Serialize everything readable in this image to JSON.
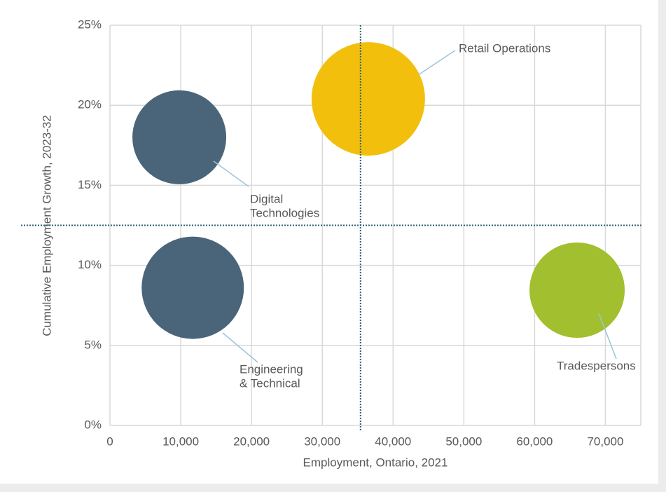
{
  "chart_data": {
    "type": "bubble",
    "x_label": "Employment, Ontario, 2021",
    "y_label": "Cumulative Employment Growth, 2023-32",
    "xlim": [
      0,
      75000
    ],
    "ylim": [
      0,
      25
    ],
    "xticks": [
      0,
      {
        "value": 10000,
        "label": "10,000"
      },
      {
        "value": 20000,
        "label": "20,000"
      },
      {
        "value": 30000,
        "label": "30,000"
      },
      {
        "value": 40000,
        "label": "40,000"
      },
      {
        "value": 50000,
        "label": "50,000"
      },
      {
        "value": 60000,
        "label": "60,000"
      },
      {
        "value": 70000,
        "label": "70,000"
      }
    ],
    "yticks": [
      {
        "value": 0,
        "label": "0%"
      },
      {
        "value": 5,
        "label": "5%"
      },
      {
        "value": 10,
        "label": "10%"
      },
      {
        "value": 15,
        "label": "15%"
      },
      {
        "value": 20,
        "label": "20%"
      },
      {
        "value": 25,
        "label": "25%"
      }
    ],
    "grid": true,
    "reference_x": 35400,
    "reference_y": 12.5,
    "series": [
      {
        "name": [
          "Digital",
          "Technologies"
        ],
        "color": "#4a6579",
        "x": [
          9800
        ],
        "values": [
          18.0
        ],
        "sizes": [
          4489
        ]
      },
      {
        "name": [
          "Engineering",
          "& Technical"
        ],
        "color": "#4a6579",
        "x": [
          11700
        ],
        "values": [
          8.6
        ],
        "sizes": [
          5329
        ]
      },
      {
        "name": [
          "Retail Operations"
        ],
        "color": "#f2c00c",
        "x": [
          36500
        ],
        "values": [
          20.4
        ],
        "sizes": [
          6561
        ]
      },
      {
        "name": [
          "Tradespersons"
        ],
        "color": "#a2bf2f",
        "x": [
          66000
        ],
        "values": [
          8.45
        ],
        "sizes": [
          4624
        ]
      }
    ]
  }
}
